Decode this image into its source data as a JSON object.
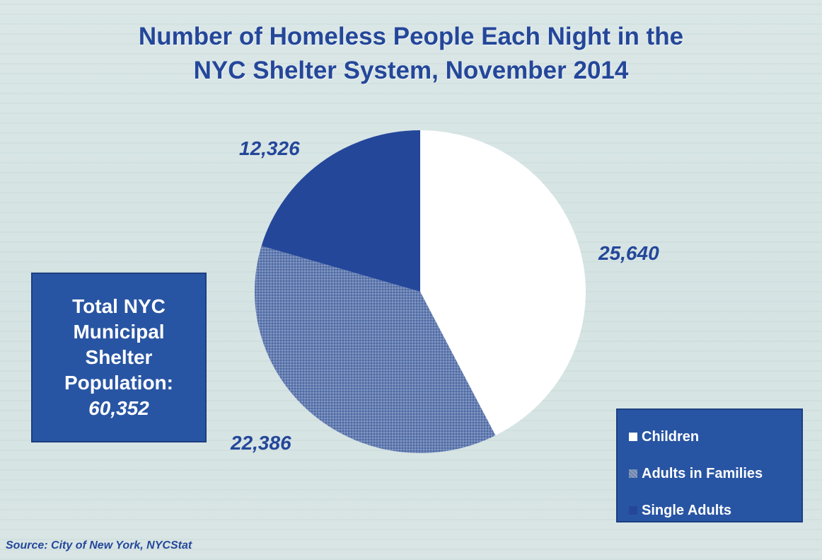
{
  "title_lines": [
    "Number of Homeless People Each Night in the",
    "NYC Shelter System, November 2014"
  ],
  "total_box": {
    "lines": [
      "Total NYC",
      "Municipal",
      "Shelter",
      "Population:"
    ],
    "value": "60,352"
  },
  "source": "Source:  City of New York, NYCStat",
  "colors": {
    "children": "#ffffff",
    "adults_in_families": "#5f7ab0",
    "single_adults": "#24479a",
    "text": "#24479a"
  },
  "chart_data": {
    "type": "pie",
    "title": "Number of Homeless People Each Night in the NYC Shelter System, November 2014",
    "slices": [
      {
        "name": "Children",
        "value": 25640,
        "label": "25,640"
      },
      {
        "name": "Adults in Families",
        "value": 22386,
        "label": "22,386"
      },
      {
        "name": "Single Adults",
        "value": 12326,
        "label": "12,326"
      }
    ],
    "legend": {
      "placement": "bottom-right",
      "entries": [
        "Children",
        "Adults in Families",
        "Single Adults"
      ]
    },
    "start_angle": "12 o'clock",
    "direction": "clockwise"
  }
}
